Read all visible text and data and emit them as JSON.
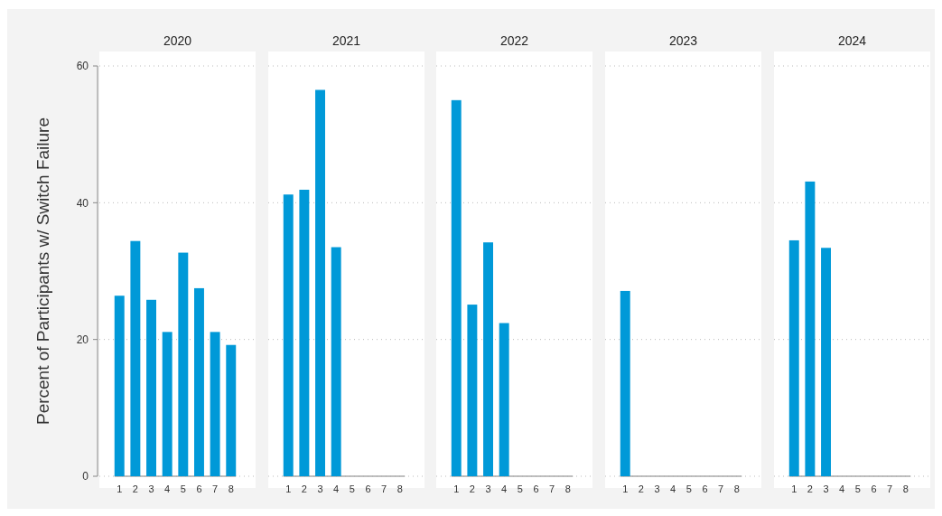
{
  "chart_data": [
    {
      "type": "bar",
      "title": "2020",
      "ylabel": "Percent of Participants w/ Switch Failure",
      "categories": [
        "1",
        "2",
        "3",
        "4",
        "5",
        "6",
        "7",
        "8"
      ],
      "values": [
        26.4,
        34.4,
        25.8,
        21.1,
        32.7,
        27.5,
        21.1,
        19.2
      ],
      "color": "#0099d8",
      "ylim": [
        0,
        60
      ],
      "yticks": [
        0,
        20,
        40,
        60
      ],
      "grid": "y"
    },
    {
      "type": "bar",
      "title": "2021",
      "categories": [
        "1",
        "2",
        "3",
        "4",
        "5",
        "6",
        "7",
        "8"
      ],
      "values": [
        41.2,
        41.9,
        56.5,
        33.5,
        0,
        0,
        0,
        0
      ],
      "color": "#0099d8",
      "ylim": [
        0,
        60
      ],
      "yticks": [
        0,
        20,
        40,
        60
      ],
      "grid": "y",
      "tick_labels": "x"
    },
    {
      "type": "bar",
      "title": "2022",
      "categories": [
        "1",
        "2",
        "3",
        "4",
        "5",
        "6",
        "7",
        "8"
      ],
      "values": [
        55.0,
        25.1,
        34.2,
        22.4,
        0,
        0,
        0,
        0
      ],
      "color": "#0099d8",
      "ylim": [
        0,
        60
      ],
      "yticks": [
        0,
        20,
        40,
        60
      ],
      "grid": "y",
      "tick_labels": "x"
    },
    {
      "type": "bar",
      "title": "2023",
      "categories": [
        "1",
        "2",
        "3",
        "4",
        "5",
        "6",
        "7",
        "8"
      ],
      "values": [
        27.1,
        0,
        0,
        0,
        0,
        0,
        0,
        0
      ],
      "color": "#0099d8",
      "ylim": [
        0,
        60
      ],
      "yticks": [
        0,
        20,
        40,
        60
      ],
      "grid": "y",
      "tick_labels": "x"
    },
    {
      "type": "bar",
      "title": "2024",
      "categories": [
        "1",
        "2",
        "3",
        "4",
        "5",
        "6",
        "7",
        "8"
      ],
      "values": [
        34.5,
        43.1,
        33.4,
        0,
        0,
        0,
        0,
        0
      ],
      "color": "#0099d8",
      "ylim": [
        0,
        60
      ],
      "yticks": [
        0,
        20,
        40,
        60
      ],
      "grid": "y",
      "tick_labels": "x"
    }
  ]
}
